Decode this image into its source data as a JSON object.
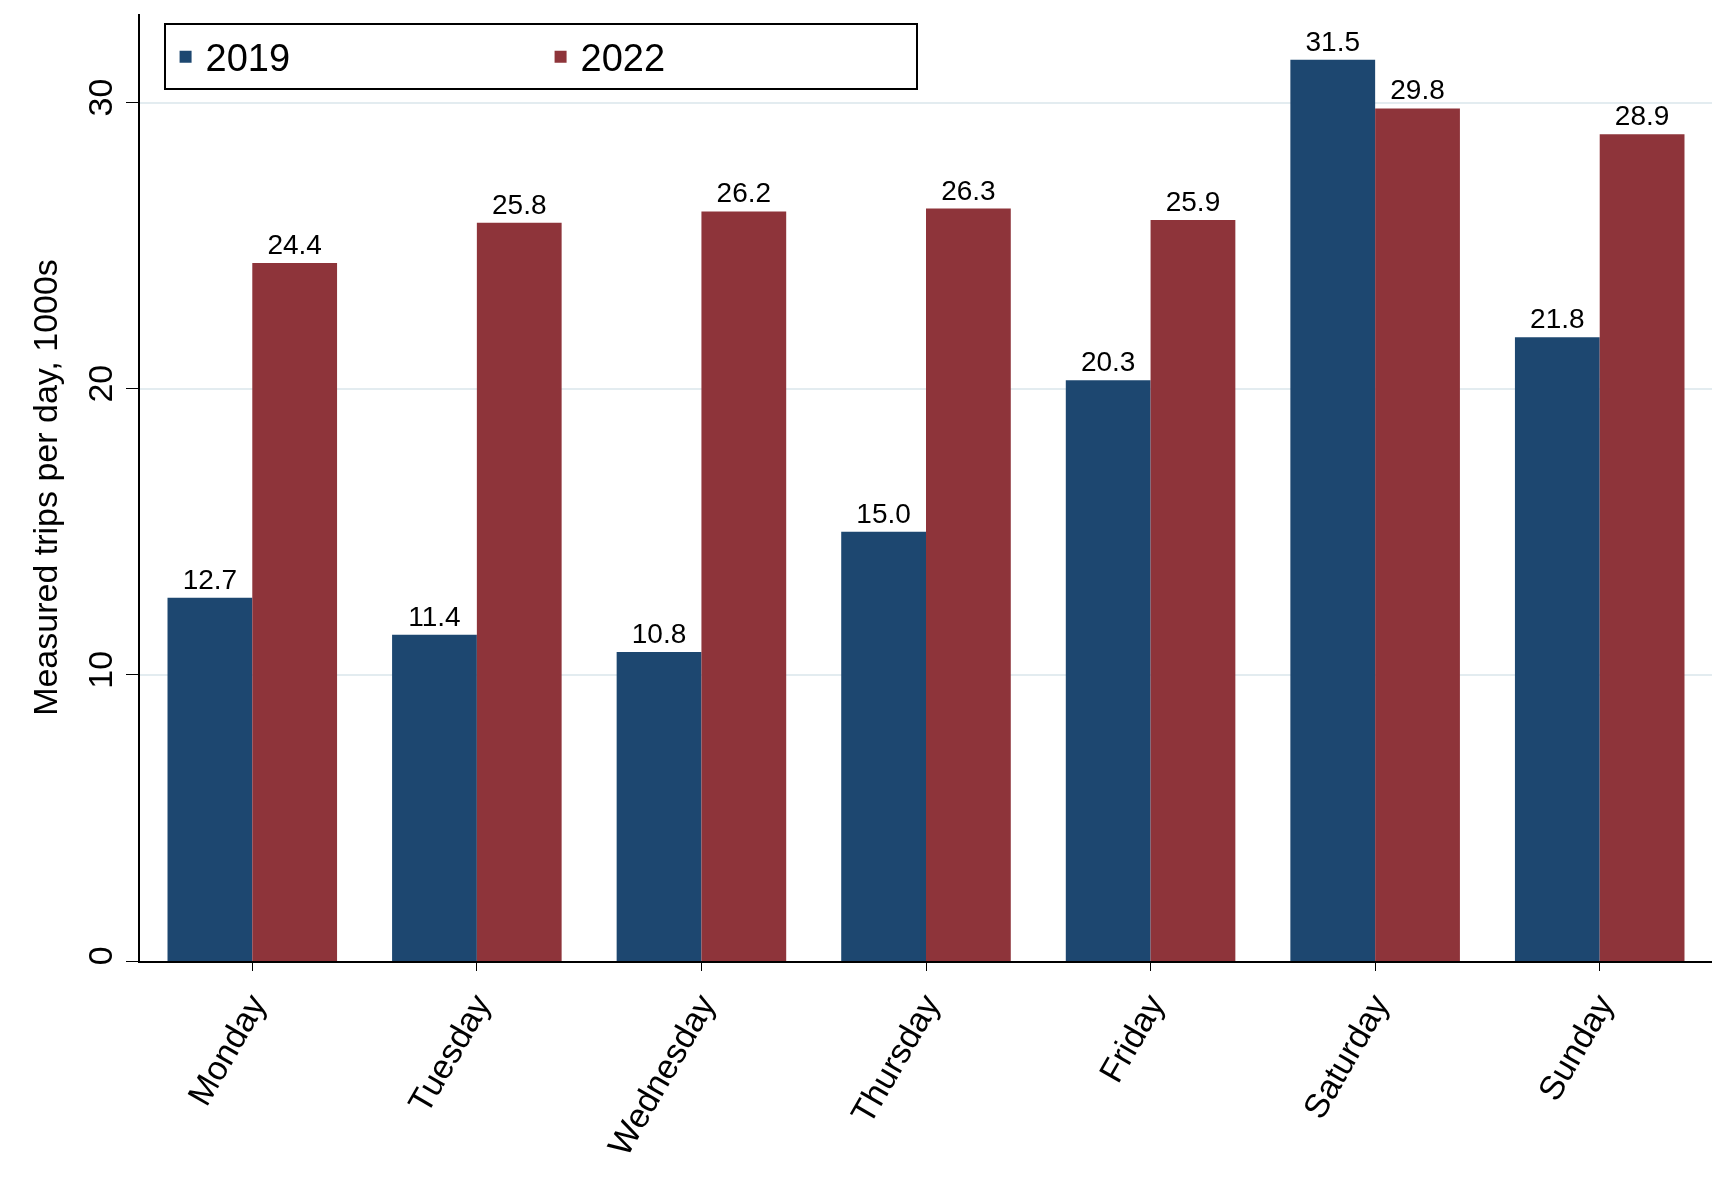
{
  "chart_data": {
    "type": "bar",
    "ylabel": "Measured trips per day, 1000s",
    "categories": [
      "Monday",
      "Tuesday",
      "Wednesday",
      "Thursday",
      "Friday",
      "Saturday",
      "Sunday"
    ],
    "series": [
      {
        "name": "2019",
        "color": "#1d4770",
        "values": [
          12.7,
          11.4,
          10.8,
          15.0,
          20.3,
          31.5,
          21.8
        ],
        "value_labels": [
          "12.7",
          "11.4",
          "10.8",
          "15.0",
          "20.3",
          "31.5",
          "21.8"
        ]
      },
      {
        "name": "2022",
        "color": "#8e343a",
        "values": [
          24.4,
          25.8,
          26.2,
          26.3,
          25.9,
          29.8,
          28.9
        ],
        "value_labels": [
          "24.4",
          "25.8",
          "26.2",
          "26.3",
          "25.9",
          "29.8",
          "28.9"
        ]
      }
    ],
    "ylim": [
      0,
      33.1
    ],
    "yticks": [
      0,
      10,
      20,
      30
    ],
    "grid": "y",
    "legend": "top left"
  }
}
